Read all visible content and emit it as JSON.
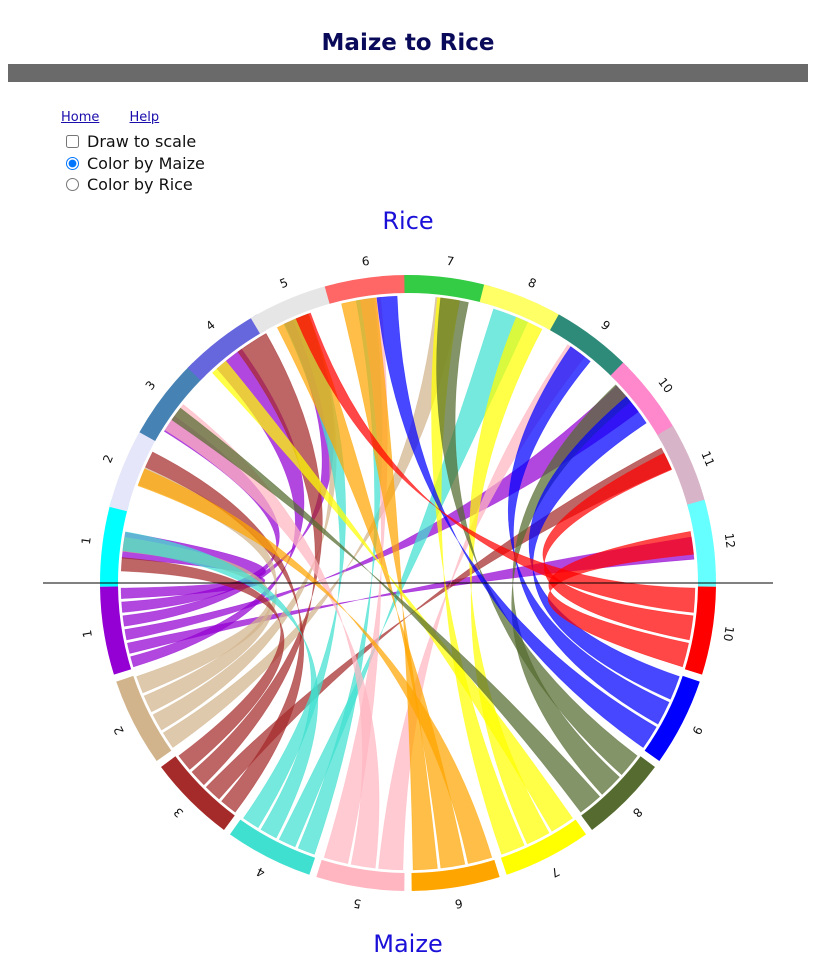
{
  "page": {
    "title": "Maize to Rice",
    "nav": {
      "home": "Home",
      "help": "Help"
    },
    "options": {
      "draw_to_scale": {
        "label": "Draw to scale",
        "checked": false
      },
      "color_by_maize": {
        "label": "Color by Maize",
        "checked": true
      },
      "color_by_rice": {
        "label": "Color by Rice",
        "checked": false
      }
    }
  },
  "chart_data": {
    "type": "chord",
    "top_genome": "Rice",
    "bottom_genome": "Maize",
    "rice_chromosomes": [
      {
        "name": "1",
        "color": "#00ffff"
      },
      {
        "name": "2",
        "color": "#e6e6fa"
      },
      {
        "name": "3",
        "color": "#4682b4"
      },
      {
        "name": "4",
        "color": "#6666dd"
      },
      {
        "name": "5",
        "color": "#e6e6e6"
      },
      {
        "name": "6",
        "color": "#ff6666"
      },
      {
        "name": "7",
        "color": "#33cc44"
      },
      {
        "name": "8",
        "color": "#ffff66"
      },
      {
        "name": "9",
        "color": "#2e8b7a"
      },
      {
        "name": "10",
        "color": "#ff88cc"
      },
      {
        "name": "11",
        "color": "#d8b4c8"
      },
      {
        "name": "12",
        "color": "#66ffff"
      }
    ],
    "maize_chromosomes": [
      {
        "name": "1",
        "color": "#9400d3"
      },
      {
        "name": "2",
        "color": "#d2b48c"
      },
      {
        "name": "3",
        "color": "#a52a2a"
      },
      {
        "name": "4",
        "color": "#40e0d0"
      },
      {
        "name": "5",
        "color": "#ffb6c1"
      },
      {
        "name": "6",
        "color": "#ffa500"
      },
      {
        "name": "7",
        "color": "#ffff00"
      },
      {
        "name": "8",
        "color": "#556b2f"
      },
      {
        "name": "9",
        "color": "#0000ff"
      },
      {
        "name": "10",
        "color": "#ff0000"
      }
    ]
  }
}
